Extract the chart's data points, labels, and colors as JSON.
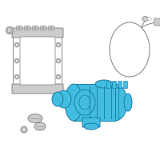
{
  "white": "#ffffff",
  "blue": "#42bde0",
  "blue_dark": "#1a7ca8",
  "gray": "#888888",
  "light_gray": "#cccccc",
  "mid_gray": "#aaaaaa",
  "lw": 0.7
}
